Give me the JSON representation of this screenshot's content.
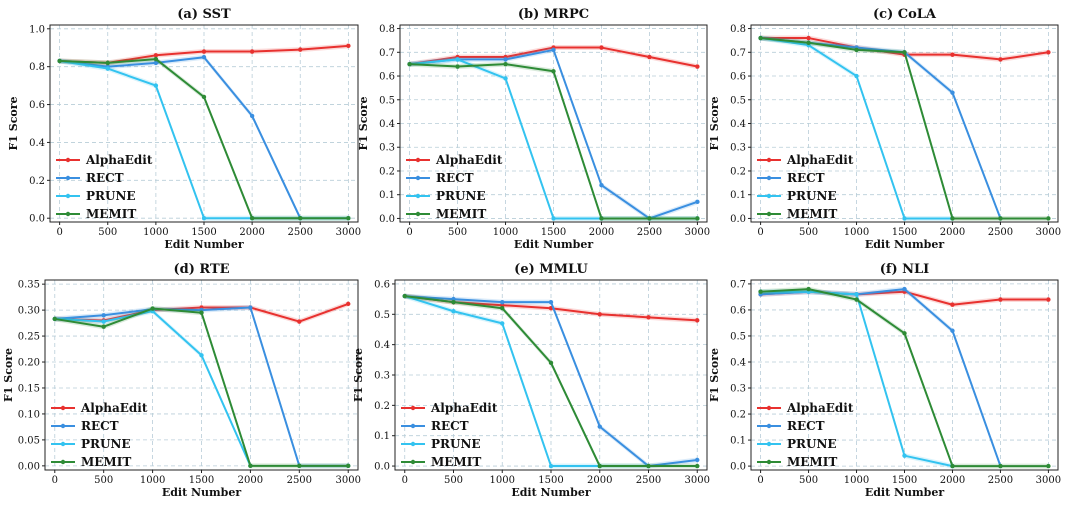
{
  "chart_data": [
    {
      "type": "line",
      "title": "(a) SST",
      "xlabel": "Edit Number",
      "ylabel": "F1 Score",
      "x": [
        0,
        500,
        1000,
        1500,
        2000,
        2500,
        3000
      ],
      "ylim": [
        -0.02,
        1.02
      ],
      "yticks": [
        0.0,
        0.2,
        0.4,
        0.6,
        0.8,
        1.0
      ],
      "ytick_labels": [
        "0.0",
        "0.2",
        "0.4",
        "0.6",
        "0.8",
        "1.0"
      ],
      "series": [
        {
          "name": "AlphaEdit",
          "values": [
            0.83,
            0.82,
            0.86,
            0.88,
            0.88,
            0.89,
            0.91
          ]
        },
        {
          "name": "RECT",
          "values": [
            0.83,
            0.8,
            0.82,
            0.85,
            0.54,
            0.0,
            null
          ]
        },
        {
          "name": "PRUNE",
          "values": [
            0.83,
            0.79,
            0.7,
            0.0,
            0.0,
            0.0,
            0.0
          ]
        },
        {
          "name": "MEMIT",
          "values": [
            0.83,
            0.82,
            0.84,
            0.64,
            0.0,
            0.0,
            0.0
          ]
        }
      ]
    },
    {
      "type": "line",
      "title": "(b) MRPC",
      "xlabel": "Edit Number",
      "ylabel": "F1 Score",
      "x": [
        0,
        500,
        1000,
        1500,
        2000,
        2500,
        3000
      ],
      "ylim": [
        -0.015,
        0.815
      ],
      "yticks": [
        0.0,
        0.1,
        0.2,
        0.3,
        0.4,
        0.5,
        0.6,
        0.7,
        0.8
      ],
      "ytick_labels": [
        "0.0",
        "0.1",
        "0.2",
        "0.3",
        "0.4",
        "0.5",
        "0.6",
        "0.7",
        "0.8"
      ],
      "series": [
        {
          "name": "AlphaEdit",
          "values": [
            0.65,
            0.68,
            0.68,
            0.72,
            0.72,
            0.68,
            0.64
          ]
        },
        {
          "name": "RECT",
          "values": [
            0.65,
            0.67,
            0.67,
            0.71,
            0.14,
            0.0,
            0.07
          ]
        },
        {
          "name": "PRUNE",
          "values": [
            0.65,
            0.67,
            0.59,
            0.0,
            0.0,
            0.0,
            0.0
          ]
        },
        {
          "name": "MEMIT",
          "values": [
            0.65,
            0.64,
            0.65,
            0.62,
            0.0,
            0.0,
            0.0
          ]
        }
      ]
    },
    {
      "type": "line",
      "title": "(c) CoLA",
      "xlabel": "Edit Number",
      "ylabel": "F1 Score",
      "x": [
        0,
        500,
        1000,
        1500,
        2000,
        2500,
        3000
      ],
      "ylim": [
        -0.015,
        0.815
      ],
      "yticks": [
        0.0,
        0.1,
        0.2,
        0.3,
        0.4,
        0.5,
        0.6,
        0.7,
        0.8
      ],
      "ytick_labels": [
        "0.0",
        "0.1",
        "0.2",
        "0.3",
        "0.4",
        "0.5",
        "0.6",
        "0.7",
        "0.8"
      ],
      "series": [
        {
          "name": "AlphaEdit",
          "values": [
            0.76,
            0.76,
            0.72,
            0.69,
            0.69,
            0.67,
            0.7
          ]
        },
        {
          "name": "RECT",
          "values": [
            0.76,
            0.74,
            0.72,
            0.7,
            0.53,
            0.0,
            null
          ]
        },
        {
          "name": "PRUNE",
          "values": [
            0.76,
            0.73,
            0.6,
            0.0,
            0.0,
            null,
            null
          ]
        },
        {
          "name": "MEMIT",
          "values": [
            0.76,
            0.74,
            0.71,
            0.7,
            0.0,
            0.0,
            0.0
          ]
        }
      ]
    },
    {
      "type": "line",
      "title": "(d) RTE",
      "xlabel": "Edit Number",
      "ylabel": "F1 Score",
      "x": [
        0,
        500,
        1000,
        1500,
        2000,
        2500,
        3000
      ],
      "ylim": [
        -0.008,
        0.358
      ],
      "yticks": [
        0.0,
        0.05,
        0.1,
        0.15,
        0.2,
        0.25,
        0.3,
        0.35
      ],
      "ytick_labels": [
        "0.00",
        "0.05",
        "0.10",
        "0.15",
        "0.20",
        "0.25",
        "0.30",
        "0.35"
      ],
      "series": [
        {
          "name": "AlphaEdit",
          "values": [
            0.283,
            0.28,
            0.3,
            0.305,
            0.305,
            0.278,
            0.312
          ]
        },
        {
          "name": "RECT",
          "values": [
            0.283,
            0.29,
            0.302,
            0.3,
            0.305,
            0.0,
            0.0
          ]
        },
        {
          "name": "PRUNE",
          "values": [
            0.283,
            0.278,
            0.298,
            0.213,
            0.0,
            null,
            null
          ]
        },
        {
          "name": "MEMIT",
          "values": [
            0.283,
            0.268,
            0.303,
            0.295,
            0.0,
            0.0,
            0.0
          ]
        }
      ]
    },
    {
      "type": "line",
      "title": "(e) MMLU",
      "xlabel": "Edit Number",
      "ylabel": "F1 Score",
      "x": [
        0,
        500,
        1000,
        1500,
        2000,
        2500,
        3000
      ],
      "ylim": [
        -0.013,
        0.613
      ],
      "yticks": [
        0.0,
        0.1,
        0.2,
        0.3,
        0.4,
        0.5,
        0.6
      ],
      "ytick_labels": [
        "0.0",
        "0.1",
        "0.2",
        "0.3",
        "0.4",
        "0.5",
        "0.6"
      ],
      "series": [
        {
          "name": "AlphaEdit",
          "values": [
            0.56,
            0.54,
            0.53,
            0.52,
            0.5,
            0.49,
            0.48
          ]
        },
        {
          "name": "RECT",
          "values": [
            0.56,
            0.55,
            0.54,
            0.54,
            0.13,
            0.0,
            0.02
          ]
        },
        {
          "name": "PRUNE",
          "values": [
            0.56,
            0.51,
            0.47,
            0.0,
            0.0,
            0.0,
            null
          ]
        },
        {
          "name": "MEMIT",
          "values": [
            0.56,
            0.54,
            0.52,
            0.34,
            0.0,
            0.0,
            0.0
          ]
        }
      ]
    },
    {
      "type": "line",
      "title": "(f) NLI",
      "xlabel": "Edit Number",
      "ylabel": "F1 Score",
      "x": [
        0,
        500,
        1000,
        1500,
        2000,
        2500,
        3000
      ],
      "ylim": [
        -0.015,
        0.715
      ],
      "yticks": [
        0.0,
        0.1,
        0.2,
        0.3,
        0.4,
        0.5,
        0.6,
        0.7
      ],
      "ytick_labels": [
        "0.0",
        "0.1",
        "0.2",
        "0.3",
        "0.4",
        "0.5",
        "0.6",
        "0.7"
      ],
      "series": [
        {
          "name": "AlphaEdit",
          "values": [
            0.66,
            0.67,
            0.66,
            0.67,
            0.62,
            0.64,
            0.64
          ]
        },
        {
          "name": "RECT",
          "values": [
            0.66,
            0.67,
            0.66,
            0.68,
            0.52,
            0.0,
            null
          ]
        },
        {
          "name": "PRUNE",
          "values": [
            0.67,
            0.67,
            0.66,
            0.04,
            0.0,
            null,
            null
          ]
        },
        {
          "name": "MEMIT",
          "values": [
            0.67,
            0.68,
            0.64,
            0.51,
            0.0,
            0.0,
            0.0
          ]
        }
      ]
    }
  ],
  "series_colors": {
    "AlphaEdit": "#e8312f",
    "RECT": "#3a8fe0",
    "PRUNE": "#33c3f0",
    "MEMIT": "#2e8b36"
  },
  "x_tick_labels": [
    "0",
    "500",
    "1000",
    "1500",
    "2000",
    "2500",
    "3000"
  ],
  "legend_position": "lower-left"
}
